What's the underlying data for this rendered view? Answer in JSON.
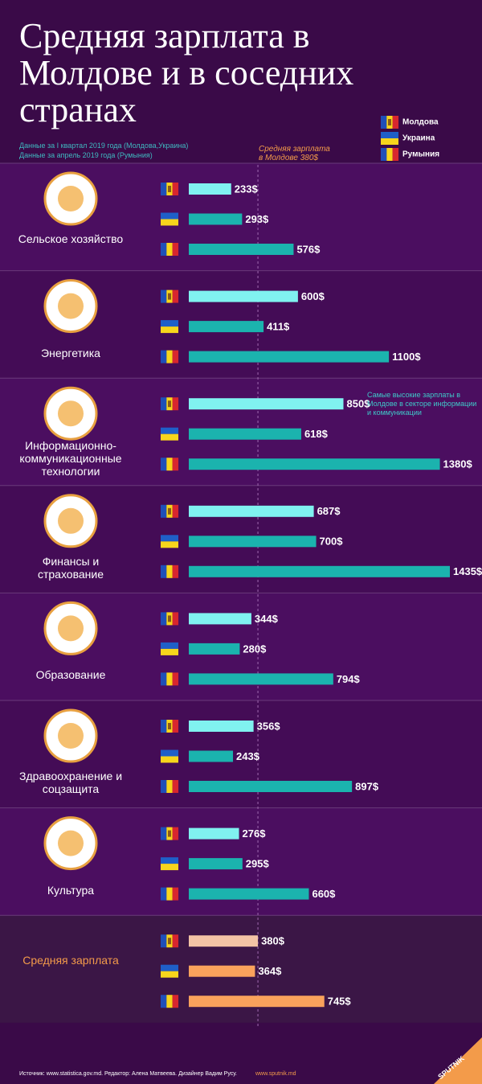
{
  "chart_data": {
    "type": "bar",
    "title": "Средняя зарплата в Молдове и в соседних странах",
    "notes": [
      "Данные за I квартал 2019 года (Молдова,Украина)",
      "Данные за апрель 2019 года (Румыния)"
    ],
    "reference_label": "Средняя зарплата в Молдове 380$",
    "annotation": "Самые высокие зарплаты в Молдове в секторе информации и коммуникации",
    "categories": [
      "Сельское хозяйство",
      "Энергетика",
      "Информационно-коммуникационные технологии",
      "Финансы и страхование",
      "Образование",
      "Здравоохранение и соцзащита",
      "Культура",
      "Средняя зарплата"
    ],
    "series": [
      {
        "name": "Молдова",
        "color": "#80f2f0",
        "total_color": "#f3c3a5",
        "values": [
          233,
          600,
          850,
          687,
          344,
          356,
          276,
          380
        ],
        "value_labels": [
          "233$",
          "600$",
          "850$",
          "687$",
          "344$",
          "356$",
          "276$",
          "380$"
        ]
      },
      {
        "name": "Украина",
        "color": "#1bb3ae",
        "total_color": "#f9a25c",
        "values": [
          293,
          411,
          618,
          700,
          280,
          243,
          295,
          364
        ],
        "value_labels": [
          "293$",
          "411$",
          "618$",
          "700$",
          "280$",
          "243$",
          "295$",
          "364$"
        ]
      },
      {
        "name": "Румыния",
        "color": "#1bb3ae",
        "total_color": "#f9a25c",
        "values": [
          576,
          1100,
          1380,
          1435,
          794,
          897,
          660,
          745
        ],
        "value_labels": [
          "576$",
          "1100$",
          "1380$",
          "1435$",
          "794$",
          "897$",
          "660$",
          "745$"
        ]
      }
    ],
    "source": "Источник: www.statistica.gov.md. Редактор: Алена Матвеева. Дизайнер Вадим Русу.",
    "site": "www.sputnik.md",
    "brand": "SPUTNIK"
  }
}
